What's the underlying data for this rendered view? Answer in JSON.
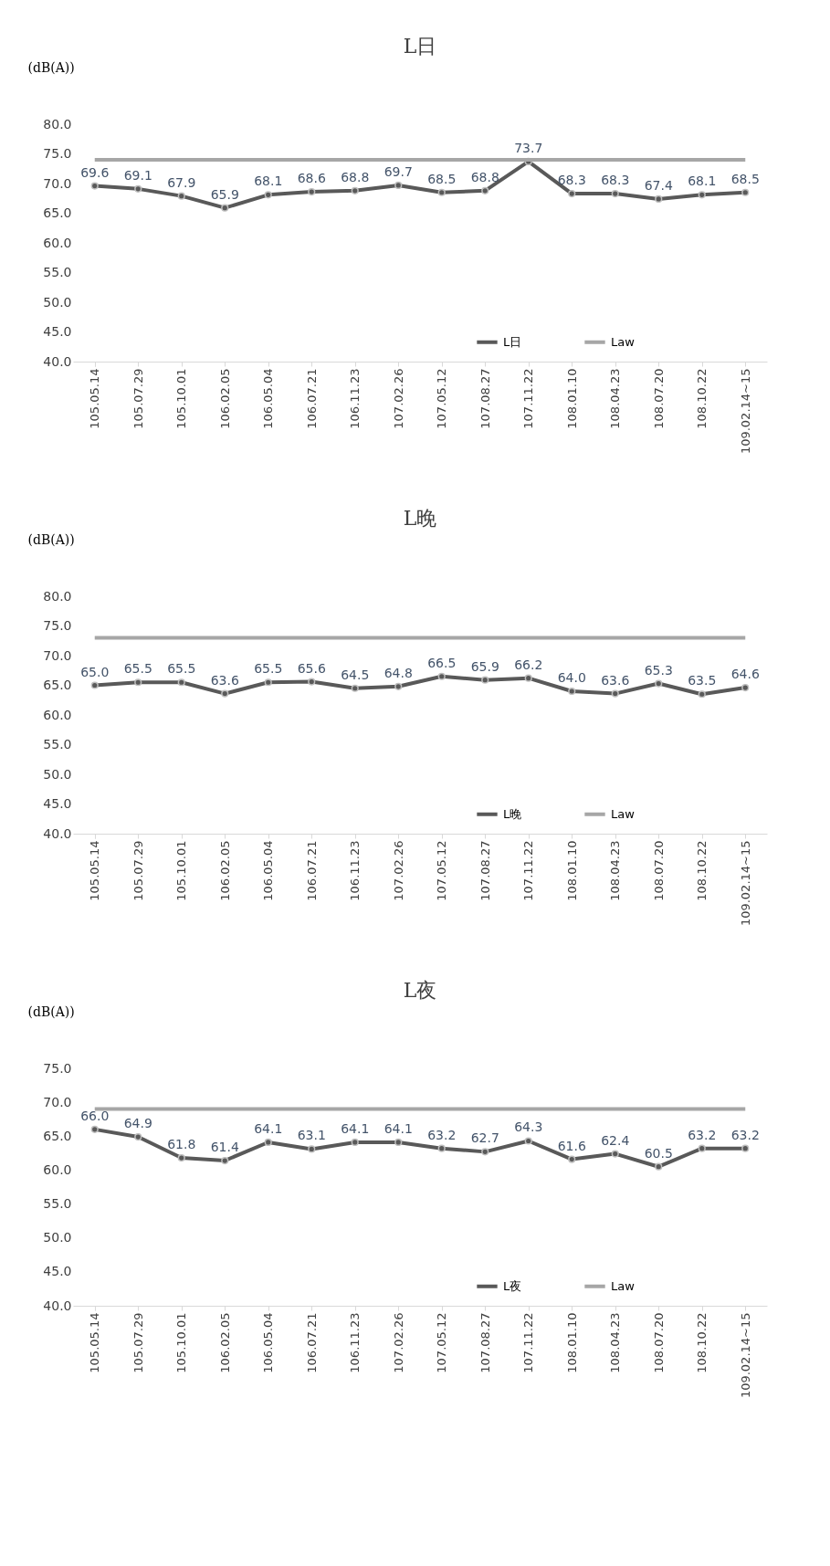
{
  "chart_data": [
    {
      "type": "line",
      "title": "L日",
      "ylabel": "(dB(A))",
      "categories": [
        "105.05.14",
        "105.07.29",
        "105.10.01",
        "106.02.05",
        "106.05.04",
        "106.07.21",
        "106.11.23",
        "107.02.26",
        "107.05.12",
        "107.08.27",
        "107.11.22",
        "108.01.10",
        "108.04.23",
        "108.07.20",
        "108.10.22",
        "109.02.14~15"
      ],
      "series": [
        {
          "name": "L日",
          "color": "#595959",
          "marker": "circle",
          "value_labels": [
            "69.6",
            "69.1",
            "67.9",
            "65.9",
            "68.1",
            "68.6",
            "68.8",
            "69.7",
            "68.5",
            "68.8",
            "73.7",
            "68.3",
            "68.3",
            "67.4",
            "68.1",
            "68.5"
          ],
          "values": [
            69.6,
            69.1,
            67.9,
            65.9,
            68.1,
            68.6,
            68.8,
            69.7,
            68.5,
            68.8,
            73.7,
            68.3,
            68.3,
            67.4,
            68.1,
            68.5
          ]
        },
        {
          "name": "Law",
          "color": "#a6a6a6",
          "marker": "none",
          "values": [
            74,
            74,
            74,
            74,
            74,
            74,
            74,
            74,
            74,
            74,
            74,
            74,
            74,
            74,
            74,
            74
          ]
        }
      ],
      "ylim": [
        40,
        80
      ],
      "yticks": [
        {
          "value": 40,
          "label": "40.0"
        },
        {
          "value": 45,
          "label": "45.0"
        },
        {
          "value": 50,
          "label": "50.0"
        },
        {
          "value": 55,
          "label": "55.0"
        },
        {
          "value": 60,
          "label": "60.0"
        },
        {
          "value": 65,
          "label": "65.0"
        },
        {
          "value": 70,
          "label": "70.0"
        },
        {
          "value": 75,
          "label": "75.0"
        },
        {
          "value": 80,
          "label": "80.0"
        }
      ],
      "grid": false,
      "legend": "bottom right"
    },
    {
      "type": "line",
      "title": "L晚",
      "ylabel": "(dB(A))",
      "categories": [
        "105.05.14",
        "105.07.29",
        "105.10.01",
        "106.02.05",
        "106.05.04",
        "106.07.21",
        "106.11.23",
        "107.02.26",
        "107.05.12",
        "107.08.27",
        "107.11.22",
        "108.01.10",
        "108.04.23",
        "108.07.20",
        "108.10.22",
        "109.02.14~15"
      ],
      "series": [
        {
          "name": "L晚",
          "color": "#595959",
          "marker": "circle",
          "value_labels": [
            "65.0",
            "65.5",
            "65.5",
            "63.6",
            "65.5",
            "65.6",
            "64.5",
            "64.8",
            "66.5",
            "65.9",
            "66.2",
            "64.0",
            "63.6",
            "65.3",
            "63.5",
            "64.6"
          ],
          "values": [
            65.0,
            65.5,
            65.5,
            63.6,
            65.5,
            65.6,
            64.5,
            64.8,
            66.5,
            65.9,
            66.2,
            64.0,
            63.6,
            65.3,
            63.5,
            64.6
          ]
        },
        {
          "name": "Law",
          "color": "#a6a6a6",
          "marker": "none",
          "values": [
            73,
            73,
            73,
            73,
            73,
            73,
            73,
            73,
            73,
            73,
            73,
            73,
            73,
            73,
            73,
            73
          ]
        }
      ],
      "ylim": [
        40,
        80
      ],
      "yticks": [
        {
          "value": 40,
          "label": "40.0"
        },
        {
          "value": 45,
          "label": "45.0"
        },
        {
          "value": 50,
          "label": "50.0"
        },
        {
          "value": 55,
          "label": "55.0"
        },
        {
          "value": 60,
          "label": "60.0"
        },
        {
          "value": 65,
          "label": "65.0"
        },
        {
          "value": 70,
          "label": "70.0"
        },
        {
          "value": 75,
          "label": "75.0"
        },
        {
          "value": 80,
          "label": "80.0"
        }
      ],
      "grid": false,
      "legend": "bottom right"
    },
    {
      "type": "line",
      "title": "L夜",
      "ylabel": "(dB(A))",
      "categories": [
        "105.05.14",
        "105.07.29",
        "105.10.01",
        "106.02.05",
        "106.05.04",
        "106.07.21",
        "106.11.23",
        "107.02.26",
        "107.05.12",
        "107.08.27",
        "107.11.22",
        "108.01.10",
        "108.04.23",
        "108.07.20",
        "108.10.22",
        "109.02.14~15"
      ],
      "series": [
        {
          "name": "L夜",
          "color": "#595959",
          "marker": "circle",
          "value_labels": [
            "66.0",
            "64.9",
            "61.8",
            "61.4",
            "64.1",
            "63.1",
            "64.1",
            "64.1",
            "63.2",
            "62.7",
            "64.3",
            "61.6",
            "62.4",
            "60.5",
            "63.2",
            "63.2"
          ],
          "values": [
            66.0,
            64.9,
            61.8,
            61.4,
            64.1,
            63.1,
            64.1,
            64.1,
            63.2,
            62.7,
            64.3,
            61.6,
            62.4,
            60.5,
            63.2,
            63.2
          ]
        },
        {
          "name": "Law",
          "color": "#a6a6a6",
          "marker": "none",
          "values": [
            69,
            69,
            69,
            69,
            69,
            69,
            69,
            69,
            69,
            69,
            69,
            69,
            69,
            69,
            69,
            69
          ]
        }
      ],
      "ylim": [
        40,
        75
      ],
      "yticks": [
        {
          "value": 40,
          "label": "40.0"
        },
        {
          "value": 45,
          "label": "45.0"
        },
        {
          "value": 50,
          "label": "50.0"
        },
        {
          "value": 55,
          "label": "55.0"
        },
        {
          "value": 60,
          "label": "60.0"
        },
        {
          "value": 65,
          "label": "65.0"
        },
        {
          "value": 70,
          "label": "70.0"
        },
        {
          "value": 75,
          "label": "75.0"
        }
      ],
      "grid": false,
      "legend": "bottom right"
    }
  ]
}
